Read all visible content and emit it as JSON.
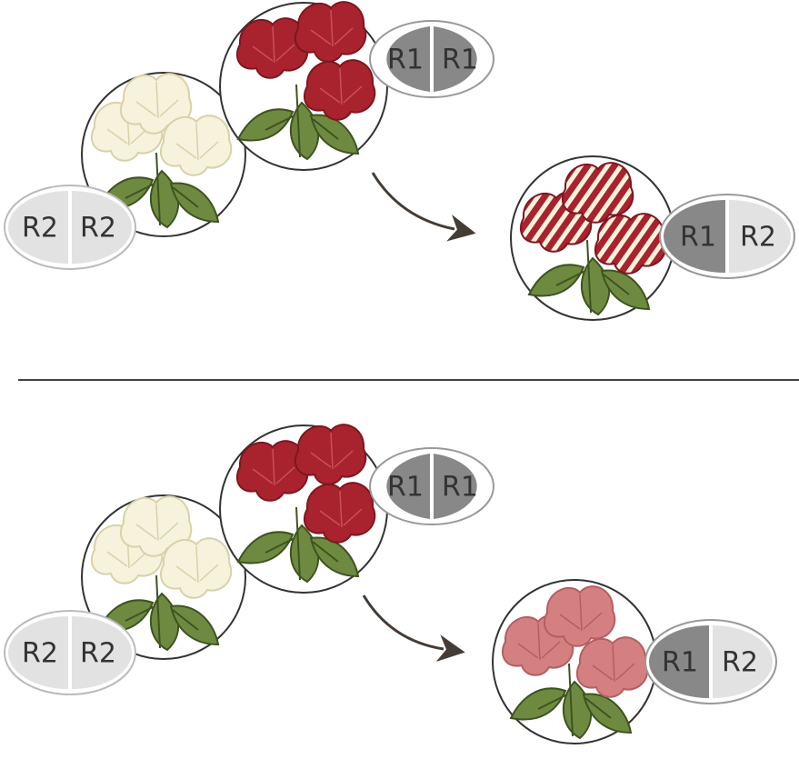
{
  "colors": {
    "red_flower": "#a8232e",
    "red_flower_dark": "#7e1620",
    "white_flower": "#f6f2dc",
    "white_flower_line": "#d9d1a8",
    "pink_flower": "#d48080",
    "pink_flower_line": "#b45e62",
    "leaf": "#6e8a40",
    "leaf_dark": "#3e5320",
    "circle_stroke": "#333333",
    "dark_allele": "#888888",
    "light_allele": "#e2e2e2",
    "arrow": "#453c35",
    "divider": "#444444"
  },
  "panels": [
    {
      "name": "top",
      "parent_red": {
        "alleles": [
          "R1",
          "R1"
        ],
        "flower": "red"
      },
      "parent_white": {
        "alleles": [
          "R2",
          "R2"
        ],
        "flower": "white"
      },
      "offspring": {
        "alleles": [
          "R1",
          "R2"
        ],
        "flower": "striped"
      }
    },
    {
      "name": "bottom",
      "parent_red": {
        "alleles": [
          "R1",
          "R1"
        ],
        "flower": "red"
      },
      "parent_white": {
        "alleles": [
          "R2",
          "R2"
        ],
        "flower": "white"
      },
      "offspring": {
        "alleles": [
          "R1",
          "R2"
        ],
        "flower": "pink"
      }
    }
  ]
}
